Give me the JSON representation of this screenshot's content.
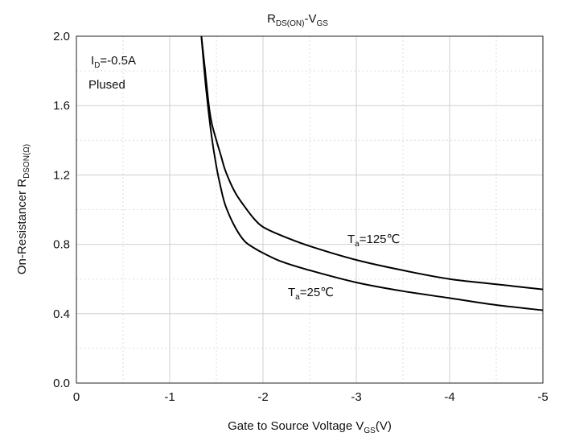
{
  "chart_data": {
    "type": "line",
    "title": {
      "main": "R",
      "main_sub": "DS(ON)",
      "sep": "-V",
      "sep_sub": "GS"
    },
    "xlabel": {
      "main": "Gate to Source Voltage V",
      "sub": "GS",
      "suffix": "(V)"
    },
    "ylabel": {
      "main": "On-Resistancer R",
      "sub": "DSON(Ω)"
    },
    "xlim": [
      0,
      -5
    ],
    "ylim": [
      0.0,
      2.0
    ],
    "x_ticks": [
      "0",
      "-1",
      "-2",
      "-3",
      "-4",
      "-5"
    ],
    "y_ticks": [
      "0.0",
      "0.4",
      "0.8",
      "1.2",
      "1.6",
      "2.0"
    ],
    "grid": true,
    "annotations": [
      {
        "main": "I",
        "sub": "D",
        "rest": "=-0.5A"
      },
      {
        "main": "Plused",
        "sub": "",
        "rest": ""
      }
    ],
    "series": [
      {
        "label": {
          "main": "T",
          "sub": "a",
          "rest": "=25℃"
        },
        "x": [
          -1.34,
          -1.38,
          -1.42,
          -1.45,
          -1.5,
          -1.55,
          -1.6,
          -1.7,
          -1.8,
          -1.9,
          -2.0,
          -2.2,
          -2.5,
          -3.0,
          -3.5,
          -4.0,
          -4.5,
          -5.0
        ],
        "y": [
          2.0,
          1.75,
          1.55,
          1.42,
          1.25,
          1.12,
          1.02,
          0.9,
          0.82,
          0.78,
          0.75,
          0.7,
          0.65,
          0.58,
          0.53,
          0.49,
          0.45,
          0.42
        ]
      },
      {
        "label": {
          "main": "T",
          "sub": "a",
          "rest": "=125℃"
        },
        "x": [
          -1.34,
          -1.38,
          -1.42,
          -1.45,
          -1.5,
          -1.55,
          -1.6,
          -1.7,
          -1.8,
          -1.9,
          -2.0,
          -2.2,
          -2.5,
          -3.0,
          -3.5,
          -4.0,
          -4.5,
          -5.0
        ],
        "y": [
          2.0,
          1.8,
          1.6,
          1.5,
          1.4,
          1.31,
          1.22,
          1.1,
          1.02,
          0.95,
          0.9,
          0.85,
          0.79,
          0.71,
          0.65,
          0.6,
          0.57,
          0.54
        ]
      }
    ]
  }
}
